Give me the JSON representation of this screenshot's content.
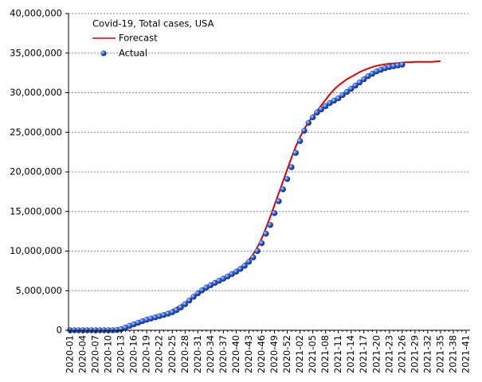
{
  "chart_data": {
    "type": "line",
    "legend_title": "Covid-19, Total cases, USA",
    "legend_position": "upper-left",
    "grid": true,
    "categories": [
      "2020-01",
      null,
      null,
      "2020-04",
      null,
      null,
      "2020-07",
      null,
      null,
      "2020-10",
      null,
      null,
      "2020-13",
      null,
      null,
      "2020-16",
      null,
      null,
      "2020-19",
      null,
      null,
      "2020-22",
      null,
      null,
      "2020-25",
      null,
      null,
      "2020-28",
      null,
      null,
      "2020-31",
      null,
      null,
      "2020-34",
      null,
      null,
      "2020-37",
      null,
      null,
      "2020-40",
      null,
      null,
      "2020-43",
      null,
      null,
      "2020-46",
      null,
      null,
      "2020-49",
      null,
      null,
      "2020-52",
      null,
      null,
      "2021-02",
      null,
      null,
      "2021-05",
      null,
      null,
      "2021-08",
      null,
      null,
      "2021-11",
      null,
      null,
      "2021-14",
      null,
      null,
      "2021-17",
      null,
      null,
      "2021-20",
      null,
      null,
      "2021-23",
      null,
      null,
      "2021-26",
      null,
      null,
      "2021-29",
      null,
      null,
      "2021-32",
      null,
      null,
      "2021-35",
      null,
      null,
      "2021-38",
      null,
      null,
      "2021-41"
    ],
    "ylim": [
      0,
      40000000
    ],
    "yticks": [
      {
        "value": 0,
        "label": "0"
      },
      {
        "value": 5000000,
        "label": "5,000,000"
      },
      {
        "value": 10000000,
        "label": "10,000,000"
      },
      {
        "value": 15000000,
        "label": "15,000,000"
      },
      {
        "value": 20000000,
        "label": "20,000,000"
      },
      {
        "value": 25000000,
        "label": "25,000,000"
      },
      {
        "value": 30000000,
        "label": "30,000,000"
      },
      {
        "value": 35000000,
        "label": "35,000,000"
      },
      {
        "value": 40000000,
        "label": "40,000,000"
      }
    ],
    "series": [
      {
        "name": "Forecast",
        "type": "line",
        "color": "#e00000",
        "values": [
          0,
          0,
          0,
          0,
          0,
          0,
          0,
          0,
          0,
          20000,
          60000,
          120000,
          200000,
          300000,
          420000,
          580000,
          760000,
          950000,
          1150000,
          1350000,
          1550000,
          1750000,
          1980000,
          2250000,
          2550000,
          2850000,
          3150000,
          3450000,
          3800000,
          4150000,
          4500000,
          4850000,
          5200000,
          5550000,
          5900000,
          6200000,
          6500000,
          6800000,
          7150000,
          7500000,
          7900000,
          8350000,
          8900000,
          9600000,
          10500000,
          11600000,
          12900000,
          14300000,
          15800000,
          17300000,
          18800000,
          20300000,
          21800000,
          23200000,
          24400000,
          25400000,
          26300000,
          27000000,
          27700000,
          28400000,
          29100000,
          29800000,
          30400000,
          30900000,
          31300000,
          31700000,
          32000000,
          32300000,
          32600000,
          32850000,
          33050000,
          33250000,
          33400000,
          33500000,
          33600000,
          33650000,
          33700000,
          33750000,
          33800000,
          33850000,
          33850000,
          33900000,
          33900000,
          33900000,
          33900000,
          33900000,
          33950000,
          34000000,
          null,
          null,
          null,
          null,
          null,
          null
        ]
      },
      {
        "name": "Actual",
        "type": "scatter",
        "color": "#1f4fc8",
        "values": [
          0,
          0,
          0,
          0,
          0,
          0,
          0,
          0,
          0,
          500,
          3500,
          33000,
          140000,
          340000,
          560000,
          760000,
          960000,
          1160000,
          1330000,
          1490000,
          1640000,
          1790000,
          1940000,
          2100000,
          2280000,
          2540000,
          2880000,
          3300000,
          3760000,
          4230000,
          4670000,
          5050000,
          5390000,
          5690000,
          5980000,
          6260000,
          6520000,
          6800000,
          7100000,
          7400000,
          7750000,
          8150000,
          8650000,
          9200000,
          10000000,
          11000000,
          12200000,
          13300000,
          14800000,
          16300000,
          17800000,
          19100000,
          20600000,
          22400000,
          23900000,
          25200000,
          26200000,
          26900000,
          27500000,
          27900000,
          28300000,
          28700000,
          29000000,
          29300000,
          29700000,
          30100000,
          30500000,
          30900000,
          31300000,
          31700000,
          32100000,
          32400000,
          32700000,
          32900000,
          33100000,
          33250000,
          33350000,
          33450000,
          33550000,
          null,
          null,
          null,
          null,
          null,
          null,
          null,
          null,
          null,
          null,
          null,
          null,
          null,
          null,
          null
        ]
      }
    ]
  }
}
